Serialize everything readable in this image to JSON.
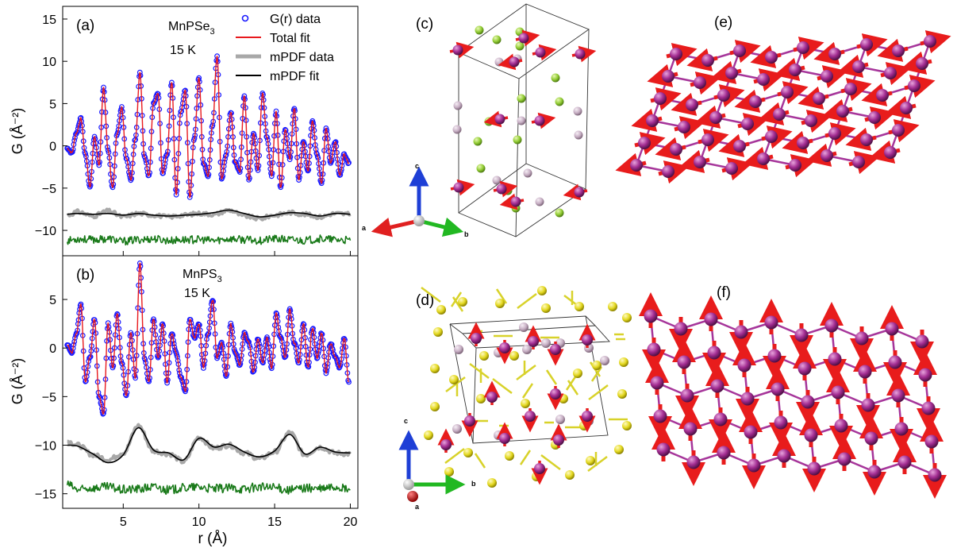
{
  "chart_data": [
    {
      "panel": "a",
      "type": "line",
      "panel_label": "(a)",
      "sample": "MnPSe",
      "subscript": "3",
      "temperature": "15 K",
      "ylabel": "G (Å⁻²)",
      "xlabel": "",
      "xlim": [
        1,
        20.5
      ],
      "ylim": [
        -13,
        16.5
      ],
      "yticks": [
        15,
        10,
        5,
        0,
        -5,
        -10
      ],
      "ytick_labels": [
        "15",
        "10",
        "5",
        "0",
        "−5",
        "−10"
      ],
      "xticks": [
        5,
        10,
        15,
        20
      ],
      "legend": {
        "position": "top-right",
        "entries": [
          {
            "label": "G(r) data",
            "style": "open-circle",
            "color": "#1a1aff"
          },
          {
            "label": "Total fit",
            "style": "line",
            "color": "#e8191d"
          },
          {
            "label": "mPDF data",
            "style": "thick-line",
            "color": "#a8a8a8"
          },
          {
            "label": "mPDF fit",
            "style": "line",
            "color": "#000000"
          }
        ]
      },
      "series": [
        {
          "name": "G(r) data",
          "color": "#1a1aff",
          "x": [
            1.3,
            1.6,
            1.9,
            2.2,
            2.5,
            2.8,
            3.1,
            3.4,
            3.7,
            4.0,
            4.3,
            4.6,
            4.9,
            5.2,
            5.5,
            5.8,
            6.1,
            6.4,
            6.7,
            7.0,
            7.3,
            7.6,
            7.9,
            8.2,
            8.5,
            8.8,
            9.1,
            9.4,
            9.7,
            10.0,
            10.3,
            10.6,
            10.9,
            11.2,
            11.5,
            11.8,
            12.1,
            12.4,
            12.7,
            13.0,
            13.3,
            13.6,
            13.9,
            14.2,
            14.5,
            14.8,
            15.1,
            15.4,
            15.7,
            16.0,
            16.3,
            16.6,
            16.9,
            17.2,
            17.5,
            17.8,
            18.1,
            18.4,
            18.7,
            19.0,
            19.3,
            19.6,
            19.9
          ],
          "y": [
            -0.3,
            -0.8,
            1.5,
            3.2,
            -1.0,
            -4.8,
            1.0,
            -2.2,
            6.8,
            -0.5,
            -5.0,
            1.5,
            4.5,
            -1.5,
            -4.0,
            0.8,
            8.6,
            -1.2,
            -3.5,
            5.0,
            6.2,
            -3.2,
            -1.0,
            7.5,
            -5.8,
            4.0,
            6.5,
            -6.0,
            1.0,
            8.0,
            -2.0,
            -3.5,
            2.5,
            10.6,
            -4.0,
            -1.0,
            4.0,
            -2.0,
            -3.0,
            6.0,
            -4.0,
            1.5,
            -2.8,
            6.2,
            1.0,
            -3.5,
            4.0,
            -5.0,
            2.0,
            -1.5,
            4.5,
            -4.0,
            0.5,
            -3.0,
            3.0,
            -1.0,
            -4.5,
            2.0,
            -2.0,
            0.5,
            -3.5,
            -1.0,
            -2.0
          ]
        },
        {
          "name": "Total fit",
          "color": "#e8191d",
          "same_as": "G(r) data"
        },
        {
          "name": "mPDF data",
          "color": "#a8a8a8",
          "x": [
            1.3,
            2.0,
            3.0,
            4.0,
            5.0,
            6.0,
            7.0,
            8.0,
            9.0,
            10.0,
            11.0,
            12.0,
            13.0,
            14.0,
            15.0,
            16.0,
            17.0,
            18.0,
            19.0,
            20.0
          ],
          "y": [
            -8.2,
            -7.8,
            -8.3,
            -7.7,
            -8.4,
            -8.0,
            -8.2,
            -8.4,
            -8.2,
            -8.0,
            -8.1,
            -7.6,
            -8.3,
            -8.6,
            -8.2,
            -7.9,
            -8.1,
            -8.4,
            -8.0,
            -8.1
          ]
        },
        {
          "name": "mPDF fit",
          "color": "#000000",
          "x": [
            1.3,
            2.0,
            3.0,
            4.0,
            5.0,
            6.0,
            7.0,
            8.0,
            9.0,
            10.0,
            11.0,
            12.0,
            13.0,
            14.0,
            15.0,
            16.0,
            17.0,
            18.0,
            19.0,
            20.0
          ],
          "y": [
            -8.1,
            -8.0,
            -8.1,
            -8.0,
            -8.2,
            -8.0,
            -8.2,
            -8.3,
            -8.2,
            -8.1,
            -7.9,
            -7.6,
            -8.0,
            -8.4,
            -8.2,
            -7.9,
            -8.0,
            -8.3,
            -8.0,
            -8.1
          ]
        },
        {
          "name": "difference",
          "color": "#1a7a1a",
          "x": [
            1.3,
            2.0,
            3.0,
            4.0,
            5.0,
            6.0,
            7.0,
            8.0,
            9.0,
            10.0,
            11.0,
            12.0,
            13.0,
            14.0,
            15.0,
            16.0,
            17.0,
            18.0,
            19.0,
            20.0
          ],
          "y": [
            -11.2,
            -11.0,
            -11.1,
            -11.0,
            -11.3,
            -11.1,
            -11.0,
            -11.2,
            -11.1,
            -11.1,
            -11.2,
            -11.0,
            -11.1,
            -11.2,
            -11.0,
            -11.1,
            -11.2,
            -11.0,
            -11.1,
            -11.2
          ]
        }
      ]
    },
    {
      "panel": "b",
      "type": "line",
      "panel_label": "(b)",
      "sample": "MnPS",
      "subscript": "3",
      "temperature": "15 K",
      "ylabel": "G (Å⁻²)",
      "xlabel": "r (Å)",
      "xlim": [
        1,
        20.5
      ],
      "ylim": [
        -16.5,
        9.5
      ],
      "yticks": [
        5,
        0,
        -5,
        -10,
        -15
      ],
      "ytick_labels": [
        "5",
        "0",
        "−5",
        "−10",
        "−15"
      ],
      "xticks": [
        5,
        10,
        15,
        20
      ],
      "xtick_labels": [
        "5",
        "10",
        "15",
        "20"
      ],
      "series": [
        {
          "name": "G(r) data",
          "color": "#1a1aff",
          "x": [
            1.3,
            1.6,
            1.9,
            2.2,
            2.5,
            2.8,
            3.1,
            3.4,
            3.7,
            4.0,
            4.3,
            4.6,
            4.9,
            5.2,
            5.5,
            5.8,
            6.1,
            6.4,
            6.7,
            7.0,
            7.3,
            7.6,
            7.9,
            8.2,
            8.5,
            8.8,
            9.1,
            9.4,
            9.7,
            10.0,
            10.3,
            10.6,
            10.9,
            11.2,
            11.5,
            11.8,
            12.1,
            12.4,
            12.7,
            13.0,
            13.3,
            13.6,
            13.9,
            14.2,
            14.5,
            14.8,
            15.1,
            15.4,
            15.7,
            16.0,
            16.3,
            16.6,
            16.9,
            17.2,
            17.5,
            17.8,
            18.1,
            18.4,
            18.7,
            19.0,
            19.3,
            19.6,
            19.9
          ],
          "y": [
            0.3,
            -0.5,
            1.5,
            4.5,
            -3.5,
            -1.0,
            3.0,
            -5.0,
            -6.8,
            2.5,
            -2.0,
            3.5,
            -1.5,
            -5.0,
            1.5,
            -3.0,
            8.7,
            -1.0,
            -3.5,
            3.0,
            -1.0,
            2.5,
            -3.5,
            1.5,
            -0.5,
            -3.0,
            -4.5,
            3.0,
            1.0,
            2.5,
            -2.0,
            1.5,
            5.0,
            -1.0,
            0.5,
            -3.0,
            2.5,
            -0.5,
            -1.8,
            1.5,
            0.5,
            -2.5,
            1.0,
            -1.5,
            1.0,
            -2.0,
            3.5,
            1.0,
            -1.0,
            4.0,
            0.5,
            -1.5,
            2.5,
            -2.0,
            2.0,
            -1.0,
            1.5,
            -2.5,
            0.5,
            -1.0,
            -2.0,
            1.0,
            -3.5
          ]
        },
        {
          "name": "Total fit",
          "color": "#e8191d",
          "same_as": "G(r) data"
        },
        {
          "name": "mPDF data",
          "color": "#a8a8a8",
          "x": [
            1.3,
            2.0,
            3.0,
            4.0,
            5.0,
            6.0,
            7.0,
            8.0,
            9.0,
            10.0,
            11.0,
            12.0,
            13.0,
            14.0,
            15.0,
            16.0,
            17.0,
            18.0,
            19.0,
            20.0
          ],
          "y": [
            -9.6,
            -10.0,
            -11.0,
            -11.5,
            -10.8,
            -8.0,
            -10.6,
            -10.9,
            -11.7,
            -9.2,
            -10.3,
            -10.0,
            -10.8,
            -11.4,
            -10.7,
            -8.7,
            -11.0,
            -10.2,
            -10.8,
            -10.9
          ]
        },
        {
          "name": "mPDF fit",
          "color": "#000000",
          "x": [
            1.3,
            2.0,
            3.0,
            4.0,
            5.0,
            6.0,
            7.0,
            8.0,
            9.0,
            10.0,
            11.0,
            12.0,
            13.0,
            14.0,
            15.0,
            16.0,
            17.0,
            18.0,
            19.0,
            20.0
          ],
          "y": [
            -10.0,
            -10.1,
            -10.9,
            -11.8,
            -11.0,
            -8.2,
            -10.5,
            -10.8,
            -11.5,
            -9.3,
            -10.2,
            -9.9,
            -10.7,
            -11.2,
            -10.6,
            -8.9,
            -10.9,
            -10.2,
            -10.7,
            -10.8
          ]
        },
        {
          "name": "difference",
          "color": "#1a7a1a",
          "x": [
            1.3,
            2.0,
            3.0,
            4.0,
            5.0,
            6.0,
            7.0,
            8.0,
            9.0,
            10.0,
            11.0,
            12.0,
            13.0,
            14.0,
            15.0,
            16.0,
            17.0,
            18.0,
            19.0,
            20.0
          ],
          "y": [
            -14.0,
            -14.6,
            -14.4,
            -14.3,
            -14.6,
            -14.5,
            -14.3,
            -14.6,
            -14.4,
            -14.3,
            -14.5,
            -14.4,
            -14.5,
            -14.3,
            -14.4,
            -14.6,
            -14.4,
            -14.5,
            -14.3,
            -14.6
          ]
        }
      ]
    }
  ],
  "structure_panels": {
    "c": {
      "label": "(c)",
      "axes": [
        "a",
        "b",
        "c"
      ]
    },
    "d": {
      "label": "(d)",
      "axes": [
        "a",
        "b",
        "c"
      ]
    },
    "e": {
      "label": "(e)"
    },
    "f": {
      "label": "(f)"
    }
  },
  "colors": {
    "data": "#1a1aff",
    "fit": "#e8191d",
    "mpdf_data": "#a8a8a8",
    "mpdf_fit": "#000000",
    "diff": "#1a7a1a",
    "mn_atom": "#9b2a8a",
    "spin_arrow": "#e81c1c",
    "se_atom": "#9ad13c",
    "s_atom": "#e5e02a",
    "p_atom": "#c9b3c6",
    "axis_a": "#e02020",
    "axis_b": "#22b822",
    "axis_c": "#1e3fd6"
  }
}
